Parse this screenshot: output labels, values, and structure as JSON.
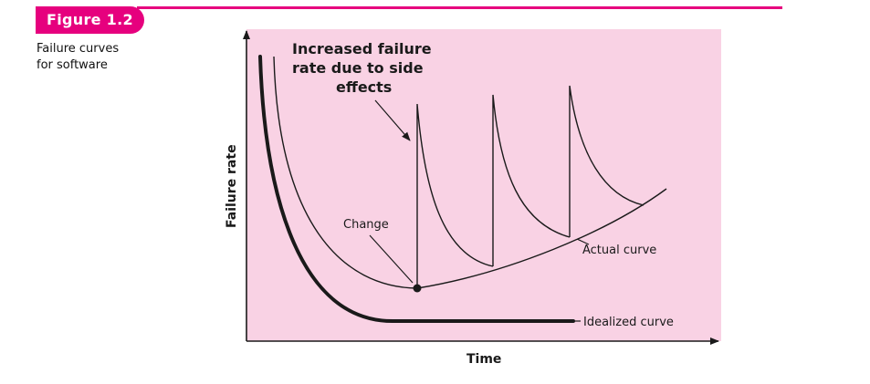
{
  "figure": {
    "badge": "Figure 1.2",
    "caption_lines": [
      "Failure curves",
      "for software"
    ],
    "accent_color": "#e6007e",
    "panel_color": "#f9d2e4"
  },
  "diagram": {
    "x_axis_label": "Time",
    "y_axis_label": "Failure rate",
    "annotation_side_effects": [
      "Increased failure",
      "rate due to side",
      "effects"
    ],
    "annotation_change": "Change",
    "label_actual_curve": "Actual curve",
    "label_idealized_curve": "Idealized curve"
  }
}
